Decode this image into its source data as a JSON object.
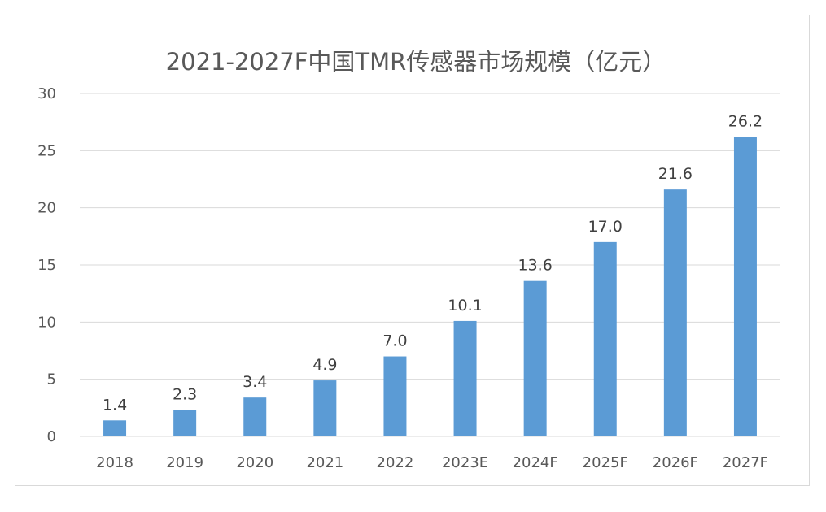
{
  "chart_data": {
    "type": "bar",
    "title": "2021-2027F中国TMR传感器市场规模（亿元）",
    "xlabel": "",
    "ylabel": "",
    "categories": [
      "2018",
      "2019",
      "2020",
      "2021",
      "2022",
      "2023E",
      "2024F",
      "2025F",
      "2026F",
      "2027F"
    ],
    "values": [
      1.4,
      2.3,
      3.4,
      4.9,
      7.0,
      10.1,
      13.6,
      17.0,
      21.6,
      26.2
    ],
    "value_labels": [
      "1.4",
      "2.3",
      "3.4",
      "4.9",
      "7.0",
      "10.1",
      "13.6",
      "17.0",
      "21.6",
      "26.2"
    ],
    "ylim": [
      0,
      30
    ],
    "yticks": [
      0,
      5,
      10,
      15,
      20,
      25,
      30
    ],
    "grid": true,
    "legend": "none",
    "bar_color": "#5b9bd5"
  }
}
